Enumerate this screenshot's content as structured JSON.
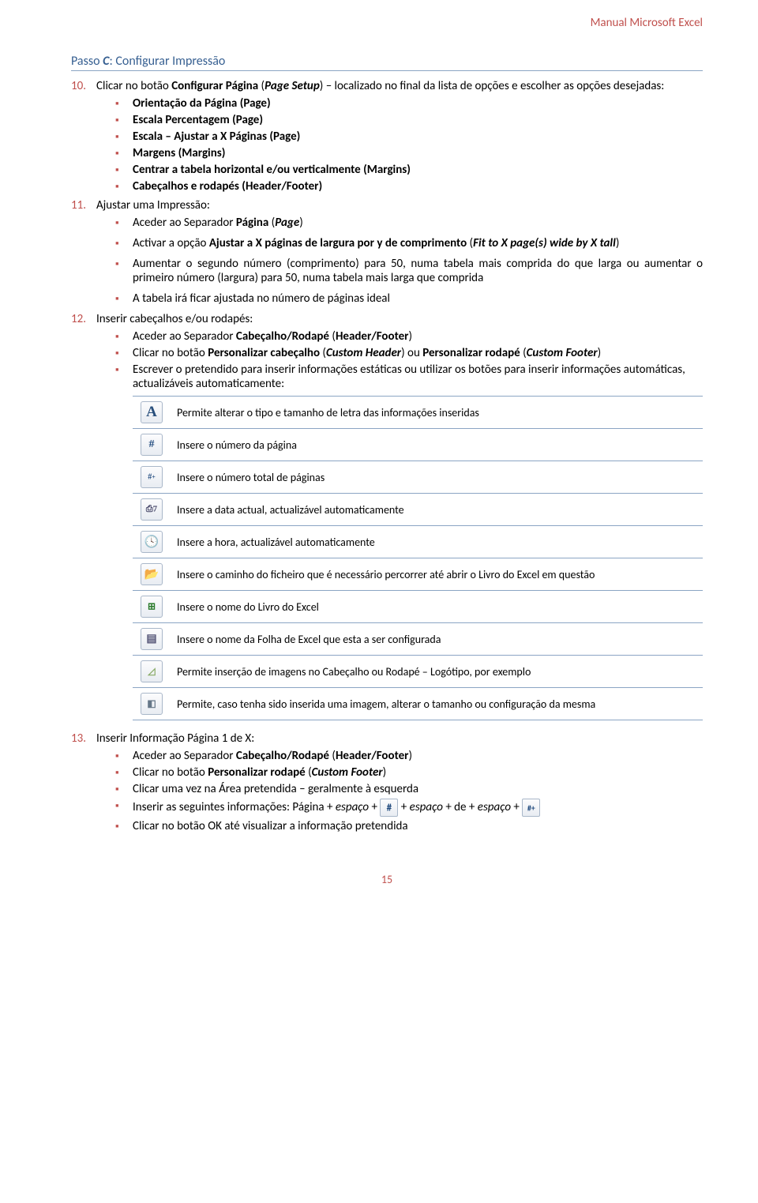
{
  "header": {
    "manual_title": "Manual Microsoft Excel"
  },
  "step": {
    "prefix": "Passo ",
    "letter": "C",
    "suffix": ": Configurar Impressão"
  },
  "item10": {
    "num": "10.",
    "text_a": "Clicar no botão ",
    "text_b": "Configurar Página",
    "text_c": " (",
    "text_d": "Page Setup",
    "text_e": ") – localizado no final da lista de opções e escolher as opções desejadas:",
    "subs": [
      "Orientação da Página (Page)",
      "Escala Percentagem (Page)",
      "Escala – Ajustar a X Páginas (Page)",
      "Margens (Margins)",
      "Centrar a tabela horizontal e/ou verticalmente (Margins)",
      "Cabeçalhos e rodapés (Header/Footer)"
    ]
  },
  "item11": {
    "num": "11.",
    "title": "Ajustar uma Impressão:",
    "sub1_a": "Aceder ao Separador ",
    "sub1_b": "Página",
    "sub1_c": " (",
    "sub1_d": "Page",
    "sub1_e": ")",
    "sub2_a": "Activar a opção ",
    "sub2_b": "Ajustar a X páginas de largura por y de comprimento",
    "sub2_c": " (",
    "sub2_d": "Fit to X page(s) wide by X tall",
    "sub2_e": ")",
    "sub3": "Aumentar o segundo número (comprimento) para 50, numa tabela mais comprida do que larga ou aumentar o primeiro número (largura) para 50, numa tabela mais larga que comprida",
    "sub4": "A tabela irá ficar ajustada no número de páginas ideal"
  },
  "item12": {
    "num": "12.",
    "title": "Inserir cabeçalhos e/ou rodapés:",
    "sub1_a": "Aceder ao Separador ",
    "sub1_b": "Cabeçalho/Rodapé",
    "sub1_c": " (",
    "sub1_d": "Header/Footer",
    "sub1_e": ")",
    "sub2_a": "Clicar no botão ",
    "sub2_b": "Personalizar cabeçalho",
    "sub2_c": " (",
    "sub2_d": "Custom Header",
    "sub2_e": ") ou ",
    "sub2_f": "Personalizar rodapé",
    "sub2_g": " (",
    "sub2_h": "Custom Footer",
    "sub2_i": ")",
    "sub3": "Escrever o pretendido para inserir informações estáticas ou utilizar os botões para inserir informações automáticas, actualizáveis automaticamente:",
    "table": [
      {
        "icon": "A",
        "desc": "Permite alterar o tipo e tamanho de letra das informações inseridas"
      },
      {
        "icon": "#",
        "desc": "Insere o número da página"
      },
      {
        "icon": "#+",
        "desc": "Insere o número total de páginas"
      },
      {
        "icon": "📅",
        "desc": "Insere a data actual, actualizável automaticamente"
      },
      {
        "icon": "🕓",
        "desc": "Insere a hora, actualizável automaticamente"
      },
      {
        "icon": "📁",
        "desc": "Insere o caminho do ficheiro que é necessário percorrer até abrir o Livro do Excel em questão"
      },
      {
        "icon": "📗",
        "desc": "Insere o nome do Livro do Excel"
      },
      {
        "icon": "📄",
        "desc": "Insere o nome da Folha de Excel que esta a ser configurada"
      },
      {
        "icon": "🖼",
        "desc": "Permite inserção de imagens no Cabeçalho ou Rodapé – Logótipo, por exemplo"
      },
      {
        "icon": "🎨",
        "desc": "Permite, caso tenha sido inserida uma imagem, alterar o tamanho ou configuração da mesma"
      }
    ]
  },
  "item13": {
    "num": "13.",
    "title": "Inserir Informação Página 1 de X:",
    "sub1_a": "Aceder ao Separador ",
    "sub1_b": "Cabeçalho/Rodapé",
    "sub1_c": " (",
    "sub1_d": "Header/Footer",
    "sub1_e": ")",
    "sub2_a": "Clicar no botão ",
    "sub2_b": "Personalizar rodapé",
    "sub2_c": " (",
    "sub2_d": "Custom Footer",
    "sub2_e": ")",
    "sub3": "Clicar uma vez na Área pretendida – geralmente à esquerda",
    "sub4_a": "Inserir as seguintes informações: Página + ",
    "sub4_b": "espaço",
    "sub4_c": " + ",
    "sub4_d": " + ",
    "sub4_e": "espaço",
    "sub4_f": " + de + ",
    "sub4_g": "espaço",
    "sub4_h": " + ",
    "sub5": "Clicar no botão OK até visualizar a informação pretendida"
  },
  "footer": {
    "page_number": "15"
  },
  "icons": {
    "font": "A",
    "page_num": "#",
    "total_pages": "#+",
    "date": "7",
    "time": "🕓",
    "path": "📂",
    "book": "x",
    "sheet": "▤",
    "picture": "▲",
    "format": "◧"
  },
  "colors": {
    "accent": "#c0504d",
    "heading": "#365f91",
    "rule": "#8ba5c4"
  }
}
